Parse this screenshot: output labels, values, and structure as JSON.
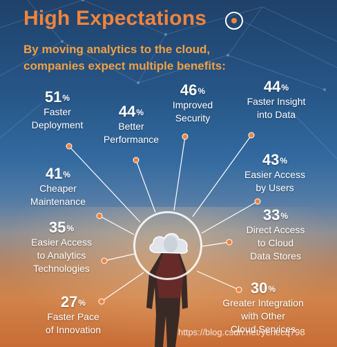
{
  "header": {
    "title": "High Expectations",
    "subtitle_line1": "By moving analytics to the cloud,",
    "subtitle_line2": "companies expect multiple benefits:"
  },
  "stats": [
    {
      "value": "51",
      "unit": "%",
      "line1": "Faster",
      "line2": "Deployment"
    },
    {
      "value": "44",
      "unit": "%",
      "line1": "Better",
      "line2": "Performance"
    },
    {
      "value": "46",
      "unit": "%",
      "line1": "Improved",
      "line2": "Security"
    },
    {
      "value": "44",
      "unit": "%",
      "line1": "Faster Insight",
      "line2": "into Data"
    },
    {
      "value": "43",
      "unit": "%",
      "line1": "Easier Access",
      "line2": "by Users"
    },
    {
      "value": "41",
      "unit": "%",
      "line1": "Cheaper",
      "line2": "Maintenance"
    },
    {
      "value": "35",
      "unit": "%",
      "line1": "Easier Access",
      "line2": "to Analytics",
      "line3": "Technologies"
    },
    {
      "value": "33",
      "unit": "%",
      "line1": "Direct Access",
      "line2": "to Cloud",
      "line3": "Data Stores"
    },
    {
      "value": "30",
      "unit": "%",
      "line1": "Greater Integration",
      "line2": "with Other",
      "line3": "Cloud Services"
    },
    {
      "value": "27",
      "unit": "%",
      "line1": "Faster Pace",
      "line2": "of Innovation"
    }
  ],
  "watermark": "https://blog.csdn.net/yehecq798",
  "colors": {
    "accent": "#f0843c",
    "subtitle": "#f0a044",
    "dot": "#f0843c",
    "line": "#ffffff"
  },
  "icons": {
    "hub": "cloud-icon",
    "figure": "person-silhouette"
  }
}
